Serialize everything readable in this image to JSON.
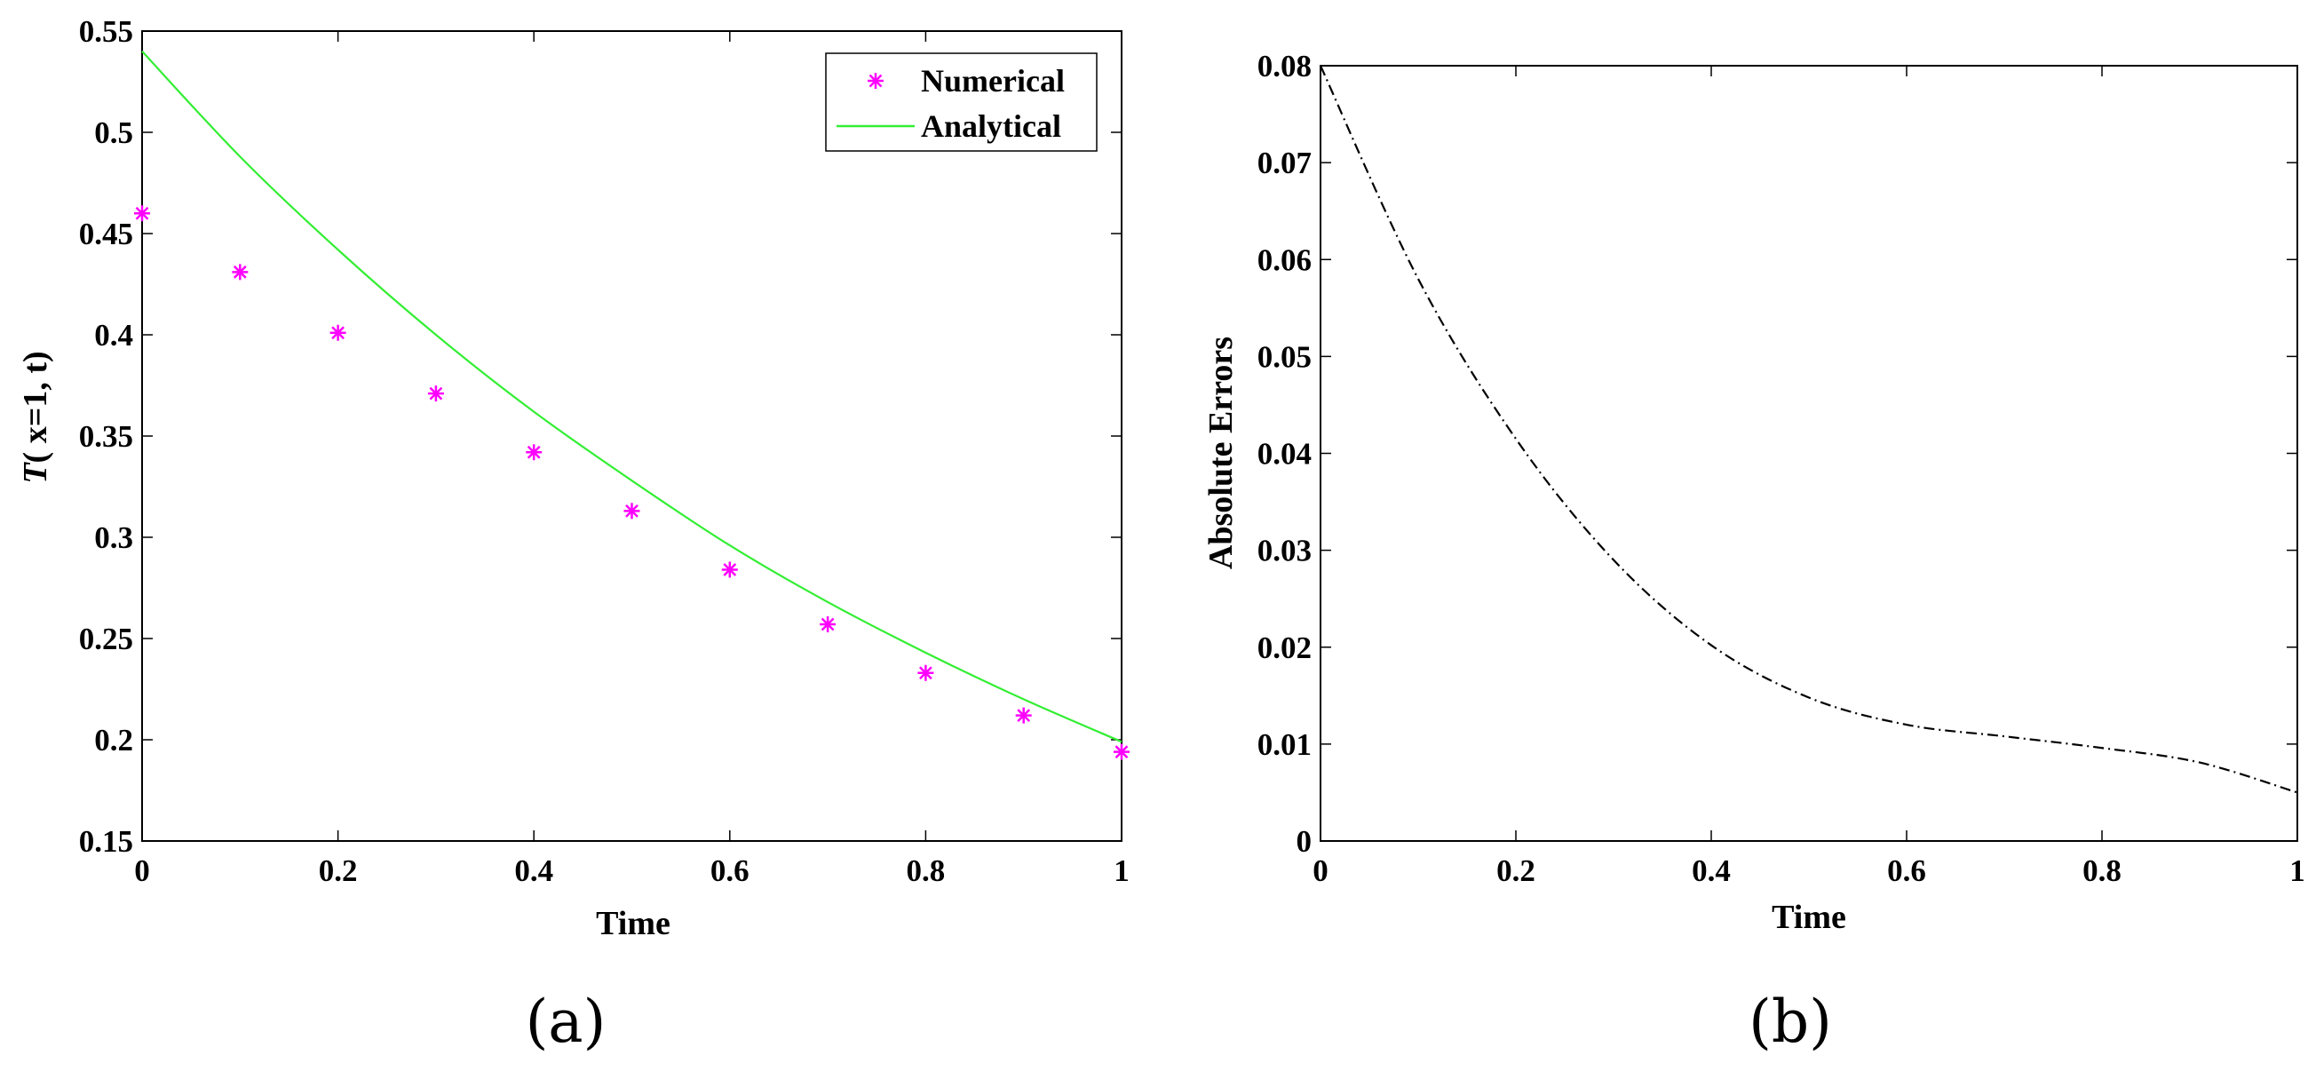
{
  "chart_data": [
    {
      "id": "a",
      "type": "line",
      "panel_label": "(a)",
      "title": "",
      "xlabel": "Time",
      "ylabel_italic": "T",
      "ylabel_rest": "( x=1, t)",
      "xlim": [
        0,
        1
      ],
      "ylim": [
        0.15,
        0.55
      ],
      "xticks": [
        "0",
        "0.2",
        "0.4",
        "0.6",
        "0.8",
        "1"
      ],
      "yticks": [
        "0.15",
        "0.2",
        "0.25",
        "0.3",
        "0.35",
        "0.4",
        "0.45",
        "0.5",
        "0.55"
      ],
      "grid": false,
      "legend_position": "top-right",
      "series": [
        {
          "name": "Numerical",
          "style": "markers",
          "marker": "*",
          "color": "#ff00ff",
          "x": [
            0,
            0.1,
            0.2,
            0.3,
            0.4,
            0.5,
            0.6,
            0.7,
            0.8,
            0.9,
            1.0
          ],
          "y": [
            0.46,
            0.431,
            0.401,
            0.371,
            0.342,
            0.313,
            0.284,
            0.257,
            0.233,
            0.212,
            0.194
          ]
        },
        {
          "name": "Analytical",
          "style": "line",
          "color": "#33ee33",
          "x": [
            0,
            0.1,
            0.2,
            0.3,
            0.4,
            0.5,
            0.6,
            0.7,
            0.8,
            0.9,
            1.0
          ],
          "y": [
            0.54,
            0.488,
            0.442,
            0.4,
            0.362,
            0.328,
            0.296,
            0.268,
            0.243,
            0.22,
            0.199
          ]
        }
      ]
    },
    {
      "id": "b",
      "type": "line",
      "panel_label": "(b)",
      "title": "",
      "xlabel": "Time",
      "ylabel": "Absolute Errors",
      "xlim": [
        0,
        1
      ],
      "ylim": [
        0,
        0.08
      ],
      "xticks": [
        "0",
        "0.2",
        "0.4",
        "0.6",
        "0.8",
        "1"
      ],
      "yticks": [
        "0",
        "0.01",
        "0.02",
        "0.03",
        "0.04",
        "0.05",
        "0.06",
        "0.07",
        "0.08"
      ],
      "grid": false,
      "series": [
        {
          "name": "Absolute Errors",
          "style": "dash-dot",
          "color": "#000000",
          "x": [
            0,
            0.1,
            0.2,
            0.3,
            0.4,
            0.5,
            0.6,
            0.7,
            0.8,
            0.9,
            1.0
          ],
          "y": [
            0.08,
            0.058,
            0.0415,
            0.029,
            0.0202,
            0.0148,
            0.012,
            0.0108,
            0.0096,
            0.0081,
            0.005
          ]
        }
      ]
    }
  ]
}
